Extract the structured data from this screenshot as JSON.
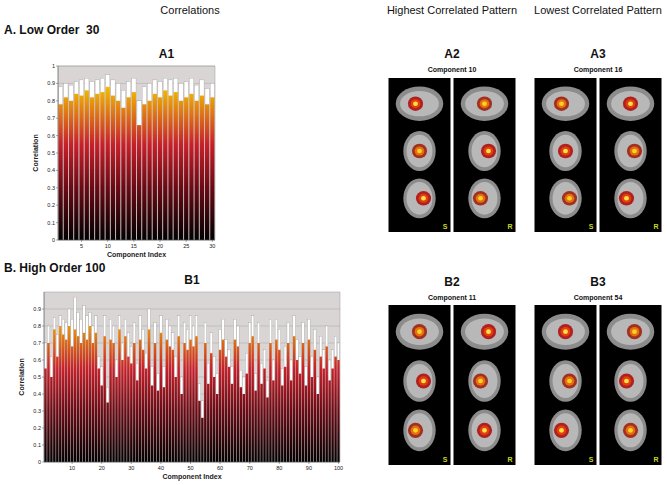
{
  "chart_data": [
    {
      "type": "bar",
      "title": "A1",
      "x_label": "Component Index",
      "y_label": "Correlation",
      "x": [
        1,
        2,
        3,
        4,
        5,
        6,
        7,
        8,
        9,
        10,
        11,
        12,
        13,
        14,
        15,
        16,
        17,
        18,
        19,
        20,
        21,
        22,
        23,
        24,
        25,
        26,
        27,
        28,
        29,
        30
      ],
      "xlim": [
        0.5,
        30.5
      ],
      "xticks": [
        5,
        10,
        15,
        20,
        25,
        30
      ],
      "ylim": [
        0,
        1
      ],
      "yticks": [
        0,
        0.1,
        0.2,
        0.3,
        0.4,
        0.5,
        0.6,
        0.7,
        0.8,
        0.9,
        1
      ],
      "grid": true,
      "series": [
        {
          "color": "#ffffff",
          "values": [
            0.88,
            0.9,
            0.89,
            0.91,
            0.92,
            0.93,
            0.91,
            0.92,
            0.93,
            0.95,
            0.92,
            0.9,
            0.86,
            0.91,
            0.93,
            0.8,
            0.88,
            0.9,
            0.92,
            0.91,
            0.93,
            0.92,
            0.93,
            0.9,
            0.91,
            0.93,
            0.89,
            0.92,
            0.87,
            0.9
          ]
        },
        {
          "color": "#f5c800",
          "values": [
            0.78,
            0.82,
            0.8,
            0.84,
            0.83,
            0.86,
            0.82,
            0.84,
            0.85,
            0.88,
            0.83,
            0.8,
            0.76,
            0.82,
            0.85,
            0.66,
            0.78,
            0.8,
            0.84,
            0.82,
            0.86,
            0.83,
            0.85,
            0.8,
            0.82,
            0.84,
            0.8,
            0.83,
            0.78,
            0.82
          ]
        }
      ]
    },
    {
      "type": "bar",
      "title": "B1",
      "x_label": "Component Index",
      "y_label": "Correlation",
      "x": [
        1,
        2,
        3,
        4,
        5,
        6,
        7,
        8,
        9,
        10,
        11,
        12,
        13,
        14,
        15,
        16,
        17,
        18,
        19,
        20,
        21,
        22,
        23,
        24,
        25,
        26,
        27,
        28,
        29,
        30,
        31,
        32,
        33,
        34,
        35,
        36,
        37,
        38,
        39,
        40,
        41,
        42,
        43,
        44,
        45,
        46,
        47,
        48,
        49,
        50,
        51,
        52,
        53,
        54,
        55,
        56,
        57,
        58,
        59,
        60,
        61,
        62,
        63,
        64,
        65,
        66,
        67,
        68,
        69,
        70,
        71,
        72,
        73,
        74,
        75,
        76,
        77,
        78,
        79,
        80,
        81,
        82,
        83,
        84,
        85,
        86,
        87,
        88,
        89,
        90,
        91,
        92,
        93,
        94,
        95,
        96,
        97,
        98,
        99,
        100
      ],
      "xlim": [
        0.5,
        100.5
      ],
      "xticks": [
        10,
        20,
        30,
        40,
        50,
        60,
        70,
        80,
        90,
        100
      ],
      "ylim": [
        0,
        1
      ],
      "yticks": [
        0,
        0.1,
        0.2,
        0.3,
        0.4,
        0.5,
        0.6,
        0.7,
        0.8,
        0.9
      ],
      "grid": true,
      "series": [
        {
          "color": "#ffffff",
          "values": [
            0.7,
            0.8,
            0.62,
            0.85,
            0.75,
            0.86,
            0.84,
            0.82,
            0.9,
            0.84,
            0.97,
            0.88,
            0.84,
            0.92,
            0.86,
            0.88,
            0.8,
            0.86,
            0.62,
            0.56,
            0.86,
            0.44,
            0.84,
            0.8,
            0.6,
            0.86,
            0.7,
            0.84,
            0.76,
            0.68,
            0.82,
            0.58,
            0.86,
            0.78,
            0.64,
            0.9,
            0.56,
            0.82,
            0.52,
            0.86,
            0.56,
            0.84,
            0.8,
            0.76,
            0.62,
            0.86,
            0.5,
            0.82,
            0.78,
            0.86,
            0.8,
            0.86,
            0.46,
            0.36,
            0.82,
            0.58,
            0.76,
            0.62,
            0.52,
            0.78,
            0.84,
            0.72,
            0.66,
            0.56,
            0.84,
            0.8,
            0.54,
            0.5,
            0.64,
            0.82,
            0.86,
            0.52,
            0.82,
            0.58,
            0.66,
            0.48,
            0.84,
            0.6,
            0.84,
            0.78,
            0.55,
            0.68,
            0.82,
            0.6,
            0.86,
            0.72,
            0.62,
            0.82,
            0.56,
            0.84,
            0.62,
            0.78,
            0.5,
            0.74,
            0.66,
            0.8,
            0.6,
            0.66,
            0.74,
            0.7
          ]
        },
        {
          "color": "#f5c800",
          "values": [
            0.55,
            0.7,
            0.5,
            0.78,
            0.62,
            0.8,
            0.75,
            0.72,
            0.8,
            0.68,
            0.78,
            0.74,
            0.7,
            0.76,
            0.72,
            0.8,
            0.7,
            0.76,
            0.55,
            0.45,
            0.74,
            0.35,
            0.72,
            0.7,
            0.5,
            0.78,
            0.6,
            0.74,
            0.62,
            0.58,
            0.7,
            0.48,
            0.72,
            0.66,
            0.55,
            0.78,
            0.45,
            0.7,
            0.42,
            0.76,
            0.44,
            0.72,
            0.68,
            0.66,
            0.5,
            0.74,
            0.4,
            0.7,
            0.66,
            0.72,
            0.68,
            0.74,
            0.36,
            0.26,
            0.7,
            0.46,
            0.64,
            0.5,
            0.4,
            0.66,
            0.72,
            0.62,
            0.56,
            0.46,
            0.72,
            0.68,
            0.44,
            0.4,
            0.52,
            0.7,
            0.74,
            0.42,
            0.7,
            0.46,
            0.55,
            0.38,
            0.7,
            0.48,
            0.72,
            0.66,
            0.45,
            0.56,
            0.7,
            0.48,
            0.74,
            0.6,
            0.52,
            0.7,
            0.45,
            0.72,
            0.5,
            0.66,
            0.4,
            0.62,
            0.55,
            0.68,
            0.48,
            0.55,
            0.62,
            0.6
          ]
        }
      ]
    }
  ],
  "figure": {
    "headers": [
      "Correlations",
      "Highest Correlated Pattern",
      "Lowest Correlated Pattern"
    ],
    "rows": [
      {
        "title": "A. Low Order  30",
        "panels": [
          {
            "label": "A2",
            "caption": "Component 10",
            "views": [
              "S",
              "R"
            ]
          },
          {
            "label": "A3",
            "caption": "Component 16",
            "views": [
              "S",
              "R"
            ]
          }
        ]
      },
      {
        "title": "B. High Order 100",
        "panels": [
          {
            "label": "B2",
            "caption": "Component 11",
            "views": [
              "S",
              "R"
            ]
          },
          {
            "label": "B3",
            "caption": "Component 54",
            "views": [
              "S",
              "R"
            ]
          }
        ]
      }
    ]
  }
}
